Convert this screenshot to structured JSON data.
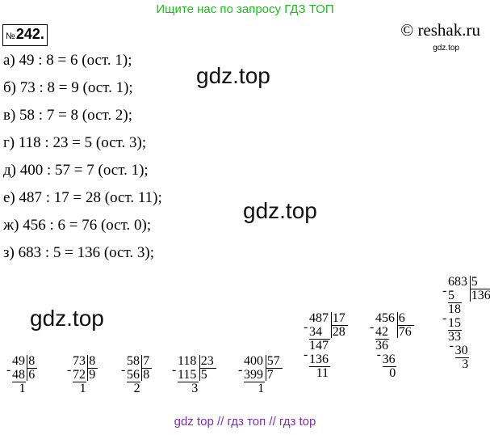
{
  "banner": "Ищите нас по запросу ГДЗ ТОП",
  "badge": {
    "prefix": "№",
    "number": "242."
  },
  "site": "© reshak.ru",
  "site_small": "gdz.top",
  "lines": [
    "а) 49 : 8 = 6 (ост. 1);",
    "б) 73 : 8 = 9 (ост. 1);",
    "в) 58 : 7 = 8 (ост. 2);",
    "г) 118 : 23 = 5 (ост. 3);",
    "д) 400 : 57 = 7 (ост. 1);",
    "е) 487 : 17 = 28 (ост. 11);",
    "ж) 456 : 6 = 76 (ост. 0);",
    "з) 683 : 5 = 136 (ост. 3);"
  ],
  "watermarks": [
    "gdz.top",
    "gdz.top",
    "gdz.top"
  ],
  "divisions": [
    {
      "dividend": "49",
      "divisor": "8",
      "quotient": "6",
      "steps": [
        {
          "sub": "48",
          "rem": "1"
        }
      ]
    },
    {
      "dividend": "73",
      "divisor": "8",
      "quotient": "9",
      "steps": [
        {
          "sub": "72",
          "rem": "1"
        }
      ]
    },
    {
      "dividend": "58",
      "divisor": "7",
      "quotient": "8",
      "steps": [
        {
          "sub": "56",
          "rem": "2"
        }
      ]
    },
    {
      "dividend": "118",
      "divisor": "23",
      "quotient": "5",
      "steps": [
        {
          "sub": "115",
          "rem": "3"
        }
      ]
    },
    {
      "dividend": "400",
      "divisor": "57",
      "quotient": "7",
      "steps": [
        {
          "sub": "399",
          "rem": "1"
        }
      ]
    },
    {
      "dividend": "487",
      "divisor": "17",
      "quotient": "28",
      "steps": [
        {
          "sub": "34",
          "rem": "147"
        },
        {
          "sub": "136",
          "rem": "11"
        }
      ]
    },
    {
      "dividend": "456",
      "divisor": "6",
      "quotient": "76",
      "steps": [
        {
          "sub": "42",
          "rem": "36"
        },
        {
          "sub": "36",
          "rem": "0"
        }
      ]
    },
    {
      "dividend": "683",
      "divisor": "5",
      "quotient": "136",
      "steps": [
        {
          "sub": "5",
          "rem": "18"
        },
        {
          "sub": "15",
          "rem": "33"
        },
        {
          "sub": "30",
          "rem": "3"
        }
      ]
    }
  ],
  "footer": "gdz top // гдз топ // гдз top"
}
